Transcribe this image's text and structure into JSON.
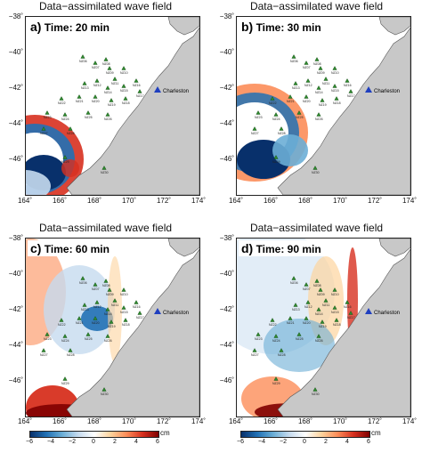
{
  "panels": [
    {
      "letter": "a)",
      "time": "Time: 20 min",
      "title": "Data−assimilated wave field"
    },
    {
      "letter": "b)",
      "time": "Time: 30 min",
      "title": "Data−assimilated wave field"
    },
    {
      "letter": "c)",
      "time": "Time: 60 min",
      "title": "Data−assimilated wave field"
    },
    {
      "letter": "d)",
      "time": "Time: 90 min",
      "title": "Data−assimilated wave field"
    }
  ],
  "y_ticks": [
    "−38˚",
    "−40˚",
    "−42˚",
    "−44˚",
    "−46˚"
  ],
  "x_ticks": [
    "164˚",
    "166˚",
    "168˚",
    "170˚",
    "172˚",
    "174˚"
  ],
  "colorbar": {
    "ticks": [
      "−6",
      "−4",
      "−2",
      "0",
      "2",
      "4",
      "6"
    ],
    "unit": "cm"
  },
  "location_label": "Charleston",
  "stations": [
    "NZ06",
    "NZ07",
    "NZ08",
    "NZ09",
    "NZ10",
    "NZ11",
    "NZ12",
    "NZ13",
    "NZ14",
    "NZ15",
    "NZ16",
    "NZ17",
    "NZ18",
    "NZ19",
    "NZ20",
    "NZ21",
    "NZ22",
    "NZ23",
    "NZ24",
    "NZ25",
    "NZ26",
    "NZ27",
    "NZ28",
    "NZ29",
    "NZ30"
  ],
  "colors": {
    "land": "#c8c8c8",
    "coast": "#555555",
    "station": "#2e8b2e",
    "charleston": "#1f3fbf"
  }
}
